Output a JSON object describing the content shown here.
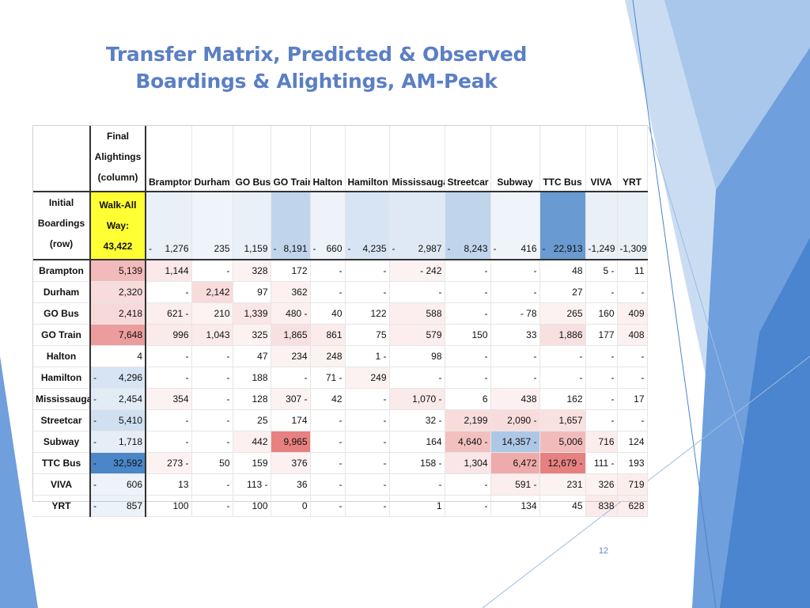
{
  "title": {
    "line1": "Transfer Matrix, Predicted & Observed",
    "line2": "Boardings & Alightings, AM-Peak"
  },
  "matrix": {
    "corner_label": [
      "Final",
      "Alightings",
      "(column)"
    ],
    "initial_label": [
      "Initial",
      "Boardings",
      "(row)"
    ],
    "walk_label": [
      "Walk-All",
      "Way:",
      "43,422"
    ],
    "columns": [
      "Brampton",
      "Durham",
      "GO Bus",
      "GO Train",
      "Halton",
      "Hamilton",
      "Mississauga",
      "Streetcar",
      "Subway",
      "TTC Bus",
      "VIVA",
      "YRT"
    ],
    "initial_boardings": [
      {
        "dash": true,
        "value": "1,276"
      },
      {
        "dash": false,
        "value": "235"
      },
      {
        "dash": false,
        "value": "1,159"
      },
      {
        "dash": true,
        "value": "8,191"
      },
      {
        "dash": true,
        "value": "660"
      },
      {
        "dash": true,
        "value": "4,235"
      },
      {
        "dash": true,
        "value": "2,987"
      },
      {
        "dash": true,
        "value": "8,243"
      },
      {
        "dash": true,
        "value": "416"
      },
      {
        "dash": true,
        "value": "22,913"
      },
      {
        "dash": true,
        "value": "1,249"
      },
      {
        "dash": true,
        "value": "1,309"
      }
    ],
    "rows": [
      {
        "label": "Brampton",
        "walk": "5,139",
        "walk_dash": false,
        "cells": [
          "1,144",
          "-",
          "328",
          "172",
          "-",
          "-",
          "-   242",
          "-",
          "-",
          "48",
          "5  -",
          "11"
        ]
      },
      {
        "label": "Durham",
        "walk": "2,320",
        "walk_dash": false,
        "cells": [
          "-",
          "2,142",
          "97",
          "362",
          "-",
          "-",
          "-",
          "-",
          "-",
          "27",
          "-",
          "-"
        ]
      },
      {
        "label": "GO Bus",
        "walk": "2,418",
        "walk_dash": false,
        "cells": [
          "621  -",
          "210",
          "1,339",
          "480  -",
          "40",
          "122",
          "588",
          "-",
          "-   78",
          "265",
          "160",
          "409"
        ]
      },
      {
        "label": "GO Train",
        "walk": "7,648",
        "walk_dash": false,
        "cells": [
          "996",
          "1,043",
          "325",
          "1,865",
          "861",
          "75",
          "579",
          "150",
          "33",
          "1,886",
          "177",
          "408"
        ]
      },
      {
        "label": "Halton",
        "walk": "4",
        "walk_dash": false,
        "cells": [
          "-",
          "-",
          "47",
          "234",
          "248",
          "1  -",
          "98",
          "-",
          "-",
          "-",
          "-",
          "-"
        ]
      },
      {
        "label": "Hamilton",
        "walk": "4,296",
        "walk_dash": true,
        "cells": [
          "-",
          "-",
          "188",
          "-",
          "71  -",
          "249",
          "-",
          "-",
          "-",
          "-",
          "-",
          "-"
        ]
      },
      {
        "label": "Mississauga",
        "walk": "2,454",
        "walk_dash": true,
        "cells": [
          "354",
          "-",
          "128",
          "307  -",
          "42",
          "-",
          "1,070  -",
          "6",
          "438",
          "162",
          "-",
          "17"
        ]
      },
      {
        "label": "Streetcar",
        "walk": "5,410",
        "walk_dash": true,
        "cells": [
          "-",
          "-",
          "25",
          "174",
          "-",
          "-",
          "32  -",
          "2,199",
          "2,090  -",
          "1,657",
          "-",
          "-"
        ]
      },
      {
        "label": "Subway",
        "walk": "1,718",
        "walk_dash": true,
        "cells": [
          "-",
          "-",
          "442",
          "9,965",
          "-",
          "-",
          "164",
          "4,640  -",
          "14,357  -",
          "5,006",
          "716",
          "124"
        ]
      },
      {
        "label": "TTC Bus",
        "walk": "32,592",
        "walk_dash": true,
        "cells": [
          "273  -",
          "50",
          "159",
          "376",
          "-",
          "-",
          "158  -",
          "1,304",
          "6,472",
          "12,679  -",
          "111  -",
          "193"
        ]
      },
      {
        "label": "VIVA",
        "walk": "606",
        "walk_dash": true,
        "cells": [
          "13",
          "-",
          "113  -",
          "36",
          "-",
          "-",
          "-",
          "-",
          "591  -",
          "231",
          "326",
          "719"
        ]
      },
      {
        "label": "YRT",
        "walk": "857",
        "walk_dash": true,
        "cells": [
          "100",
          "-",
          "100",
          "0",
          "-",
          "-",
          "1",
          "-",
          "134",
          "45",
          "838",
          "628"
        ]
      }
    ],
    "colors": {
      "walk_header": "#ffff33",
      "heat_blue_strong": "#4a86c8",
      "heat_red_strong": "#e05a5a"
    }
  },
  "page_number": "12"
}
